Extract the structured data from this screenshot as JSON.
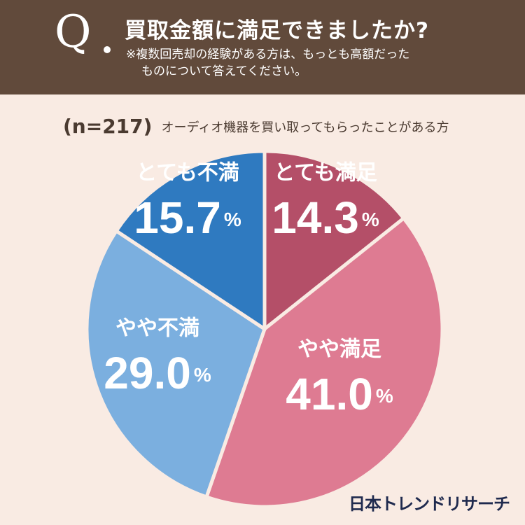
{
  "header": {
    "q_mark": "Q",
    "title": "買取金額に満足できましたか?",
    "note_line1": "※複数回売却の経験がある方は、もっとも高額だった",
    "note_line2": "ものについて答えてください。"
  },
  "sample": {
    "n_label": "(n=217)",
    "description": "オーディオ機器を買い取ってもらったことがある方"
  },
  "brand": "日本トレンドリサーチ",
  "colors": {
    "header_bg": "#614a3b",
    "page_bg": "#f9ebe3",
    "very_satisfied": "#b44f68",
    "somewhat_satisfied": "#de7b92",
    "somewhat_dissatisfied": "#7bafdf",
    "very_dissatisfied": "#2f7ac0"
  },
  "chart_data": {
    "type": "pie",
    "start": "12 o'clock",
    "direction": "clockwise",
    "slices": [
      {
        "label": "とても満足",
        "value": 14.3,
        "display": "14.3",
        "unit": "%",
        "color": "#b44f68"
      },
      {
        "label": "やや満足",
        "value": 41.0,
        "display": "41.0",
        "unit": "%",
        "color": "#de7b92"
      },
      {
        "label": "やや不満",
        "value": 29.0,
        "display": "29.0",
        "unit": "%",
        "color": "#7bafdf"
      },
      {
        "label": "とても不満",
        "value": 15.7,
        "display": "15.7",
        "unit": "%",
        "color": "#2f7ac0"
      }
    ]
  }
}
